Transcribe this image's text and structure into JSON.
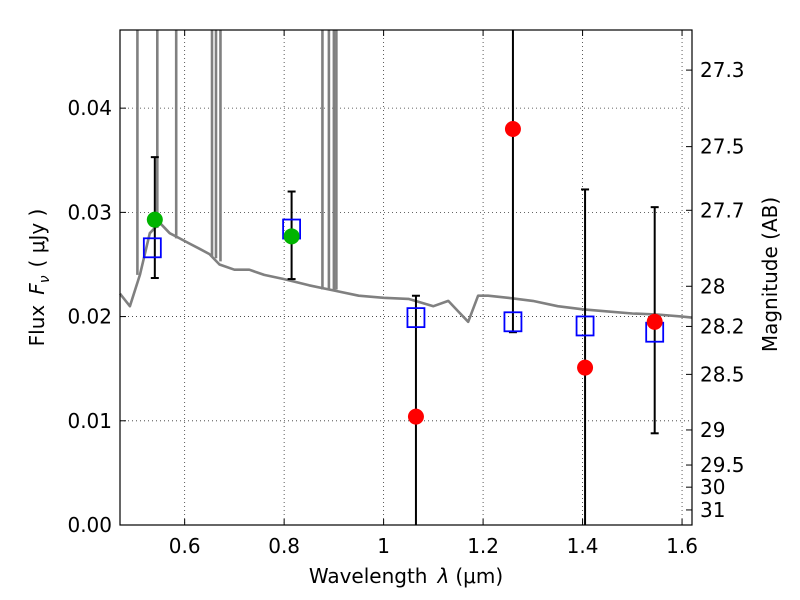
{
  "chart_data": {
    "type": "scatter",
    "xlabel_prefix": "Wavelength",
    "xlabel_symbol": "λ",
    "xlabel_unit": "(μm)",
    "ylabel_prefix": "Flux",
    "ylabel_symbol": "F",
    "ylabel_subscript": "ν",
    "ylabel_unit": "( μJy )",
    "y2label": "Magnitude (AB)",
    "xlim": [
      0.47,
      1.62
    ],
    "ylim": [
      0.0,
      0.0475
    ],
    "x_ticks": [
      0.6,
      0.8,
      1.0,
      1.2,
      1.4,
      1.6
    ],
    "x_tick_labels": [
      "0.6",
      "0.8",
      "1",
      "1.2",
      "1.4",
      "1.6"
    ],
    "y_ticks": [
      0.0,
      0.01,
      0.02,
      0.03,
      0.04
    ],
    "y_tick_labels": [
      "0.00",
      "0.01",
      "0.02",
      "0.03",
      "0.04"
    ],
    "mag_ticks": [
      27.3,
      27.5,
      27.7,
      28,
      28.2,
      28.5,
      29,
      29.5,
      30,
      31
    ],
    "mag_tick_labels": [
      "27.3",
      "27.5",
      "27.7",
      "28",
      "28.2",
      "28.5",
      "29",
      "29.5",
      "30",
      "31"
    ],
    "grid": true,
    "colors": {
      "model": "#808080",
      "green_points": "#00b400",
      "red_points": "#ff0000",
      "model_points": "#0000ff",
      "errorbars": "#000000"
    },
    "series": [
      {
        "name": "model spectrum",
        "type": "line",
        "x": [
          0.47,
          0.49,
          0.51,
          0.53,
          0.55,
          0.57,
          0.59,
          0.61,
          0.63,
          0.65,
          0.67,
          0.7,
          0.73,
          0.76,
          0.8,
          0.85,
          0.9,
          0.95,
          1.0,
          1.05,
          1.1,
          1.13,
          1.15,
          1.17,
          1.19,
          1.21,
          1.25,
          1.3,
          1.35,
          1.4,
          1.45,
          1.5,
          1.55,
          1.6,
          1.62
        ],
        "y": [
          0.0222,
          0.021,
          0.024,
          0.028,
          0.029,
          0.028,
          0.0275,
          0.027,
          0.0265,
          0.026,
          0.025,
          0.0245,
          0.0245,
          0.024,
          0.0236,
          0.023,
          0.0225,
          0.022,
          0.0218,
          0.0217,
          0.021,
          0.0215,
          0.0205,
          0.0195,
          0.022,
          0.022,
          0.0218,
          0.0215,
          0.021,
          0.0207,
          0.0205,
          0.0203,
          0.0202,
          0.02,
          0.0199
        ],
        "spikes": [
          {
            "x": 0.505,
            "y_from": 0.024,
            "y_to": 0.0475
          },
          {
            "x": 0.545,
            "y_from": 0.0285,
            "y_to": 0.0475
          },
          {
            "x": 0.583,
            "y_from": 0.0275,
            "y_to": 0.0475
          },
          {
            "x": 0.655,
            "y_from": 0.0258,
            "y_to": 0.0475
          },
          {
            "x": 0.663,
            "y_from": 0.0256,
            "y_to": 0.0475
          },
          {
            "x": 0.672,
            "y_from": 0.0253,
            "y_to": 0.0475
          },
          {
            "x": 0.877,
            "y_from": 0.0226,
            "y_to": 0.0475
          },
          {
            "x": 0.89,
            "y_from": 0.0226,
            "y_to": 0.0475
          },
          {
            "x": 0.9,
            "y_from": 0.0226,
            "y_to": 0.0475
          },
          {
            "x": 0.905,
            "y_from": 0.0226,
            "y_to": 0.0475
          }
        ]
      },
      {
        "name": "model photometry",
        "type": "square",
        "x": [
          0.535,
          0.815,
          1.065,
          1.26,
          1.405,
          1.545
        ],
        "y": [
          0.0266,
          0.0284,
          0.0199,
          0.0195,
          0.0191,
          0.0185
        ]
      },
      {
        "name": "optical detections",
        "type": "circle",
        "color": "green",
        "x": [
          0.54,
          0.815
        ],
        "y": [
          0.0293,
          0.0277
        ],
        "yerr_low": [
          0.0237,
          0.0236
        ],
        "yerr_high": [
          0.0353,
          0.032
        ]
      },
      {
        "name": "NIR measurements",
        "type": "circle",
        "color": "red",
        "x": [
          1.065,
          1.26,
          1.405,
          1.545
        ],
        "y": [
          0.0104,
          0.038,
          0.0151,
          0.0195
        ],
        "yerr_low": [
          0.0,
          0.0185,
          0.0,
          0.0088
        ],
        "yerr_high": [
          0.022,
          0.0475,
          0.0322,
          0.0305
        ]
      }
    ]
  }
}
